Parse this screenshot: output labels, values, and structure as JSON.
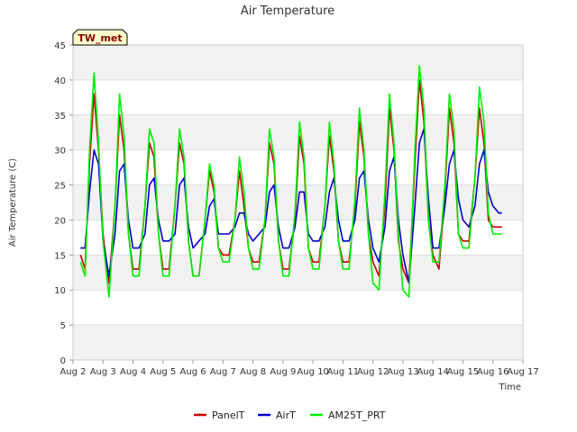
{
  "chart_data": {
    "type": "line",
    "title": "Air Temperature",
    "xlabel": "Time",
    "ylabel": "Air Temperature (C)",
    "badge": "TW_met",
    "xlim": [
      2,
      17
    ],
    "ylim": [
      0,
      45
    ],
    "x_ticks": [
      {
        "v": 2,
        "label": "Aug 2"
      },
      {
        "v": 3,
        "label": "Aug 3"
      },
      {
        "v": 4,
        "label": "Aug 4"
      },
      {
        "v": 5,
        "label": "Aug 5"
      },
      {
        "v": 6,
        "label": "Aug 6"
      },
      {
        "v": 7,
        "label": "Aug 7"
      },
      {
        "v": 8,
        "label": "Aug 8"
      },
      {
        "v": 9,
        "label": "Aug 9"
      },
      {
        "v": 10,
        "label": "Aug 10"
      },
      {
        "v": 11,
        "label": "Aug 11"
      },
      {
        "v": 12,
        "label": "Aug 12"
      },
      {
        "v": 13,
        "label": "Aug 13"
      },
      {
        "v": 14,
        "label": "Aug 14"
      },
      {
        "v": 15,
        "label": "Aug 15"
      },
      {
        "v": 16,
        "label": "Aug 16"
      },
      {
        "v": 17,
        "label": "Aug 17"
      }
    ],
    "y_ticks": [
      0,
      5,
      10,
      15,
      20,
      25,
      30,
      35,
      40,
      45
    ],
    "grid": true,
    "legend_position": "bottom",
    "series": [
      {
        "name": "PanelT",
        "color": "#cc0000",
        "x": [
          2.25,
          2.4,
          2.55,
          2.7,
          2.85,
          3.0,
          3.2,
          3.4,
          3.55,
          3.7,
          3.85,
          4.0,
          4.2,
          4.4,
          4.55,
          4.7,
          4.85,
          5.0,
          5.2,
          5.4,
          5.55,
          5.7,
          5.85,
          6.0,
          6.2,
          6.4,
          6.55,
          6.7,
          6.85,
          7.0,
          7.2,
          7.4,
          7.55,
          7.7,
          7.85,
          8.0,
          8.2,
          8.4,
          8.55,
          8.7,
          8.85,
          9.0,
          9.2,
          9.4,
          9.55,
          9.7,
          9.85,
          10.0,
          10.2,
          10.4,
          10.55,
          10.7,
          10.85,
          11.0,
          11.2,
          11.4,
          11.55,
          11.7,
          11.85,
          12.0,
          12.2,
          12.4,
          12.55,
          12.7,
          12.85,
          13.0,
          13.2,
          13.4,
          13.55,
          13.7,
          13.85,
          14.0,
          14.2,
          14.4,
          14.55,
          14.7,
          14.85,
          15.0,
          15.2,
          15.4,
          15.55,
          15.7,
          15.85,
          16.0,
          16.2,
          16.3
        ],
        "y": [
          15,
          13,
          28,
          38,
          30,
          18,
          11,
          22,
          35,
          30,
          18,
          13,
          13,
          22,
          31,
          29,
          18,
          13,
          13,
          22,
          31,
          28,
          17,
          12,
          12,
          20,
          27,
          24,
          16,
          15,
          15,
          20,
          27,
          22,
          16,
          14,
          14,
          20,
          31,
          28,
          17,
          13,
          13,
          20,
          32,
          28,
          16,
          14,
          14,
          22,
          32,
          27,
          17,
          14,
          14,
          22,
          34,
          29,
          18,
          14,
          12,
          22,
          36,
          30,
          17,
          13,
          11,
          28,
          40,
          34,
          20,
          15,
          13,
          24,
          36,
          31,
          18,
          17,
          17,
          26,
          36,
          31,
          20,
          19,
          19,
          19
        ]
      },
      {
        "name": "AirT",
        "color": "#0000cc",
        "x": [
          2.25,
          2.4,
          2.55,
          2.7,
          2.85,
          3.0,
          3.2,
          3.4,
          3.55,
          3.7,
          3.85,
          4.0,
          4.2,
          4.4,
          4.55,
          4.7,
          4.85,
          5.0,
          5.2,
          5.4,
          5.55,
          5.7,
          5.85,
          6.0,
          6.2,
          6.4,
          6.55,
          6.7,
          6.85,
          7.0,
          7.2,
          7.4,
          7.55,
          7.7,
          7.85,
          8.0,
          8.2,
          8.4,
          8.55,
          8.7,
          8.85,
          9.0,
          9.2,
          9.4,
          9.55,
          9.7,
          9.85,
          10.0,
          10.2,
          10.4,
          10.55,
          10.7,
          10.85,
          11.0,
          11.2,
          11.4,
          11.55,
          11.7,
          11.85,
          12.0,
          12.2,
          12.4,
          12.55,
          12.7,
          12.85,
          13.0,
          13.2,
          13.4,
          13.55,
          13.7,
          13.85,
          14.0,
          14.2,
          14.4,
          14.55,
          14.7,
          14.85,
          15.0,
          15.2,
          15.4,
          15.55,
          15.7,
          15.85,
          16.0,
          16.2,
          16.3
        ],
        "y": [
          16,
          16,
          24,
          30,
          28,
          17,
          12,
          18,
          27,
          28,
          20,
          16,
          16,
          18,
          25,
          26,
          20,
          17,
          17,
          18,
          25,
          26,
          19,
          16,
          17,
          18,
          22,
          23,
          18,
          18,
          18,
          19,
          21,
          21,
          18,
          17,
          18,
          19,
          24,
          25,
          19,
          16,
          16,
          19,
          24,
          24,
          18,
          17,
          17,
          19,
          24,
          26,
          20,
          17,
          17,
          20,
          26,
          27,
          20,
          16,
          14,
          19,
          27,
          29,
          20,
          15,
          11,
          22,
          31,
          33,
          23,
          16,
          16,
          22,
          28,
          30,
          23,
          20,
          19,
          22,
          28,
          30,
          24,
          22,
          21,
          21
        ]
      },
      {
        "name": "AM25T_PRT",
        "color": "#00ee00",
        "x": [
          2.25,
          2.4,
          2.55,
          2.7,
          2.85,
          3.0,
          3.2,
          3.4,
          3.55,
          3.7,
          3.85,
          4.0,
          4.2,
          4.4,
          4.55,
          4.7,
          4.85,
          5.0,
          5.2,
          5.4,
          5.55,
          5.7,
          5.85,
          6.0,
          6.2,
          6.4,
          6.55,
          6.7,
          6.85,
          7.0,
          7.2,
          7.4,
          7.55,
          7.7,
          7.85,
          8.0,
          8.2,
          8.4,
          8.55,
          8.7,
          8.85,
          9.0,
          9.2,
          9.4,
          9.55,
          9.7,
          9.85,
          10.0,
          10.2,
          10.4,
          10.55,
          10.7,
          10.85,
          11.0,
          11.2,
          11.4,
          11.55,
          11.7,
          11.85,
          12.0,
          12.2,
          12.4,
          12.55,
          12.7,
          12.85,
          13.0,
          13.2,
          13.4,
          13.55,
          13.7,
          13.85,
          14.0,
          14.2,
          14.4,
          14.55,
          14.7,
          14.85,
          15.0,
          15.2,
          15.4,
          15.55,
          15.7,
          15.85,
          16.0,
          16.2,
          16.3
        ],
        "y": [
          14,
          12,
          30,
          41,
          31,
          17,
          9,
          22,
          38,
          32,
          18,
          12,
          12,
          22,
          33,
          31,
          18,
          12,
          12,
          22,
          33,
          29,
          17,
          12,
          12,
          20,
          28,
          25,
          16,
          14,
          14,
          20,
          29,
          24,
          16,
          13,
          13,
          20,
          33,
          29,
          17,
          12,
          12,
          21,
          34,
          29,
          16,
          13,
          13,
          22,
          34,
          28,
          17,
          13,
          13,
          23,
          36,
          30,
          18,
          11,
          10,
          24,
          38,
          31,
          18,
          10,
          9,
          30,
          42,
          36,
          20,
          14,
          14,
          25,
          38,
          33,
          18,
          16,
          16,
          26,
          39,
          34,
          21,
          18,
          18,
          18
        ]
      }
    ]
  }
}
